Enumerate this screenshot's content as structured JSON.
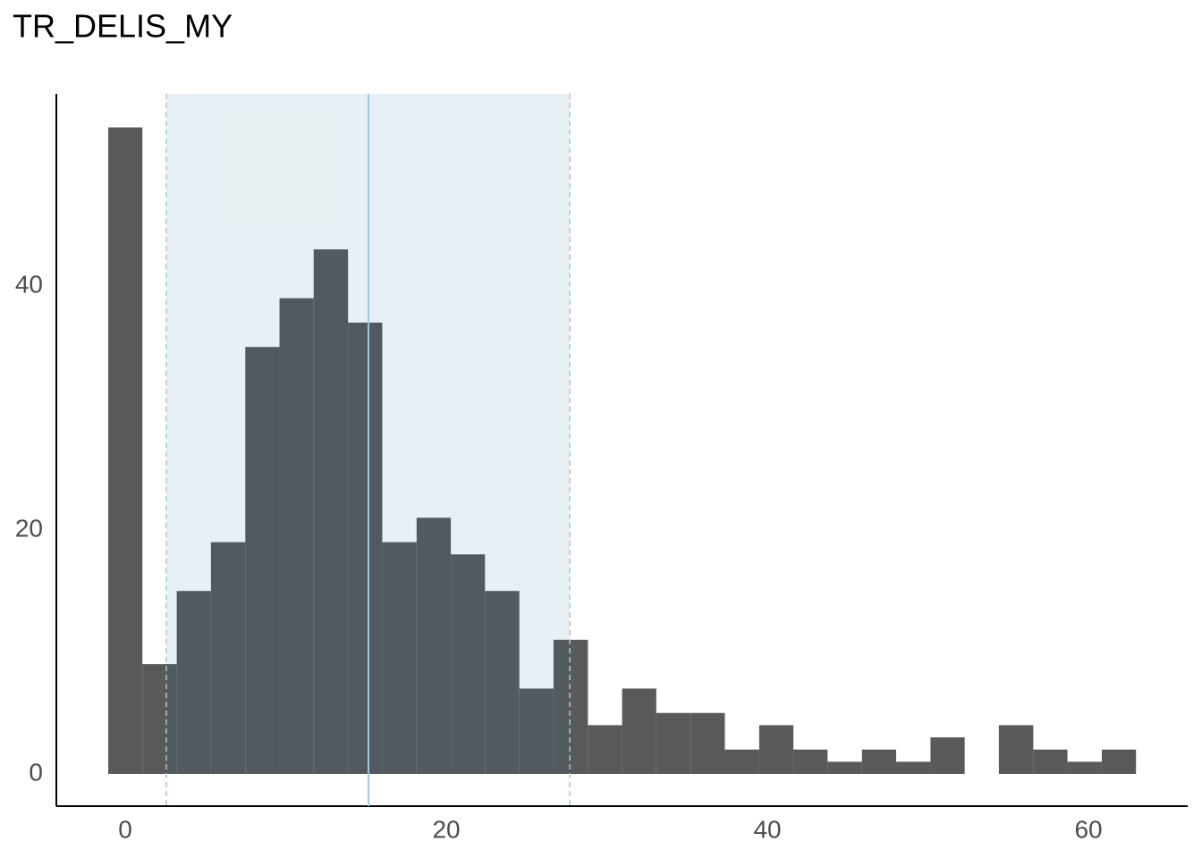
{
  "chart_data": {
    "type": "histogram",
    "title": "TR_DELIS_MY",
    "bins": [
      -1.06,
      1.07,
      3.21,
      5.34,
      7.48,
      9.61,
      11.74,
      13.88,
      16.01,
      18.15,
      20.28,
      22.41,
      24.55,
      26.68,
      28.82,
      30.95,
      33.08,
      35.22,
      37.35,
      39.49,
      41.62,
      43.75,
      45.89,
      48.02,
      50.16,
      52.29,
      54.42,
      56.56,
      58.69,
      60.83,
      62.96
    ],
    "counts": [
      53,
      9,
      15,
      19,
      35,
      39,
      43,
      37,
      19,
      21,
      18,
      15,
      7,
      11,
      4,
      7,
      5,
      5,
      2,
      4,
      2,
      1,
      2,
      1,
      3,
      0,
      4,
      2,
      1,
      2
    ],
    "color": "#595959",
    "interval": [
      2.56,
      27.69
    ],
    "center_line": 15.15,
    "interval_color": "#2a6f9a",
    "line_color": "#9ccbdc",
    "xlim": [
      -4.29,
      66.18
    ],
    "ylim": [
      -2.64,
      55.75
    ],
    "xticks": [
      0,
      20,
      40,
      60
    ],
    "yticks": [
      0,
      20,
      40
    ],
    "grid": false
  }
}
